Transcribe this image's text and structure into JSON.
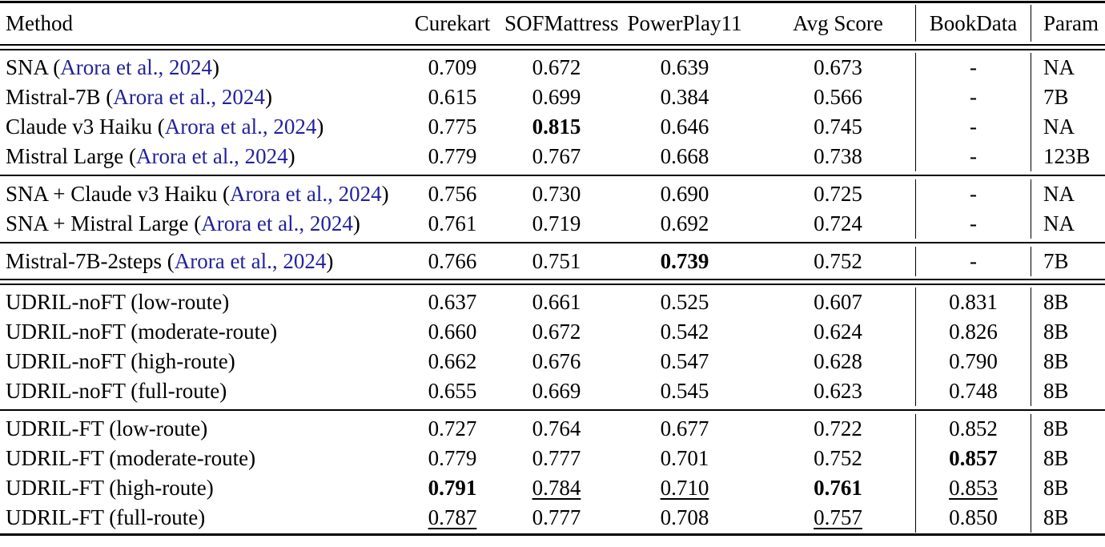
{
  "colors": {
    "citation_link": "#22229c",
    "text": "#000000",
    "rule": "#000000"
  },
  "table": {
    "columns": [
      {
        "label": "Method",
        "key": "method",
        "align": "left"
      },
      {
        "label": "Curekart",
        "key": "curekart",
        "align": "center"
      },
      {
        "label": "SOFMattress",
        "key": "sofmattress",
        "align": "center"
      },
      {
        "label": "PowerPlay11",
        "key": "powerplay11",
        "align": "center"
      },
      {
        "label": "Avg Score",
        "key": "avg-score",
        "align": "center"
      },
      {
        "label": "BookData",
        "key": "bookdata",
        "align": "center",
        "vline": true
      },
      {
        "label": "Param",
        "key": "param",
        "align": "left",
        "vline": true
      }
    ],
    "groups": [
      {
        "rule_after": "single",
        "rows": [
          {
            "method_pre": "SNA (",
            "citation": "Arora et al., 2024",
            "method_post": ")",
            "cells": [
              {
                "v": "0.709",
                "s": ""
              },
              {
                "v": "0.672",
                "s": ""
              },
              {
                "v": "0.639",
                "s": ""
              },
              {
                "v": "0.673",
                "s": ""
              },
              {
                "v": "-",
                "s": ""
              },
              {
                "v": "NA",
                "s": ""
              }
            ]
          },
          {
            "method_pre": "Mistral-7B (",
            "citation": "Arora et al., 2024",
            "method_post": ")",
            "cells": [
              {
                "v": "0.615",
                "s": ""
              },
              {
                "v": "0.699",
                "s": ""
              },
              {
                "v": "0.384",
                "s": ""
              },
              {
                "v": "0.566",
                "s": ""
              },
              {
                "v": "-",
                "s": ""
              },
              {
                "v": "7B",
                "s": ""
              }
            ]
          },
          {
            "method_pre": "Claude v3 Haiku (",
            "citation": "Arora et al., 2024",
            "method_post": ")",
            "cells": [
              {
                "v": "0.775",
                "s": ""
              },
              {
                "v": "0.815",
                "s": "b"
              },
              {
                "v": "0.646",
                "s": ""
              },
              {
                "v": "0.745",
                "s": ""
              },
              {
                "v": "-",
                "s": ""
              },
              {
                "v": "NA",
                "s": ""
              }
            ]
          },
          {
            "method_pre": "Mistral Large (",
            "citation": "Arora et al., 2024",
            "method_post": ")",
            "cells": [
              {
                "v": "0.779",
                "s": ""
              },
              {
                "v": "0.767",
                "s": ""
              },
              {
                "v": "0.668",
                "s": ""
              },
              {
                "v": "0.738",
                "s": ""
              },
              {
                "v": "-",
                "s": ""
              },
              {
                "v": "123B",
                "s": ""
              }
            ]
          }
        ]
      },
      {
        "rule_after": "single",
        "rows": [
          {
            "method_pre": "SNA + Claude v3 Haiku (",
            "citation": "Arora et al., 2024",
            "method_post": ")",
            "cells": [
              {
                "v": "0.756",
                "s": ""
              },
              {
                "v": "0.730",
                "s": ""
              },
              {
                "v": "0.690",
                "s": ""
              },
              {
                "v": "0.725",
                "s": ""
              },
              {
                "v": "-",
                "s": ""
              },
              {
                "v": "NA",
                "s": ""
              }
            ]
          },
          {
            "method_pre": "SNA + Mistral Large (",
            "citation": "Arora et al., 2024",
            "method_post": ")",
            "cells": [
              {
                "v": "0.761",
                "s": ""
              },
              {
                "v": "0.719",
                "s": ""
              },
              {
                "v": "0.692",
                "s": ""
              },
              {
                "v": "0.724",
                "s": ""
              },
              {
                "v": "-",
                "s": ""
              },
              {
                "v": "NA",
                "s": ""
              }
            ]
          }
        ]
      },
      {
        "rule_after": "double",
        "rows": [
          {
            "method_pre": "Mistral-7B-2steps (",
            "citation": "Arora et al., 2024",
            "method_post": ")",
            "cells": [
              {
                "v": "0.766",
                "s": ""
              },
              {
                "v": "0.751",
                "s": ""
              },
              {
                "v": "0.739",
                "s": "b"
              },
              {
                "v": "0.752",
                "s": ""
              },
              {
                "v": "-",
                "s": ""
              },
              {
                "v": "7B",
                "s": ""
              }
            ]
          }
        ]
      },
      {
        "rule_after": "single",
        "rows": [
          {
            "method_pre": "UDRIL-noFT (low-route)",
            "citation": "",
            "method_post": "",
            "cells": [
              {
                "v": "0.637",
                "s": ""
              },
              {
                "v": "0.661",
                "s": ""
              },
              {
                "v": "0.525",
                "s": ""
              },
              {
                "v": "0.607",
                "s": ""
              },
              {
                "v": "0.831",
                "s": ""
              },
              {
                "v": "8B",
                "s": ""
              }
            ]
          },
          {
            "method_pre": "UDRIL-noFT (moderate-route)",
            "citation": "",
            "method_post": "",
            "cells": [
              {
                "v": "0.660",
                "s": ""
              },
              {
                "v": "0.672",
                "s": ""
              },
              {
                "v": "0.542",
                "s": ""
              },
              {
                "v": "0.624",
                "s": ""
              },
              {
                "v": "0.826",
                "s": ""
              },
              {
                "v": "8B",
                "s": ""
              }
            ]
          },
          {
            "method_pre": "UDRIL-noFT (high-route)",
            "citation": "",
            "method_post": "",
            "cells": [
              {
                "v": "0.662",
                "s": ""
              },
              {
                "v": "0.676",
                "s": ""
              },
              {
                "v": "0.547",
                "s": ""
              },
              {
                "v": "0.628",
                "s": ""
              },
              {
                "v": "0.790",
                "s": ""
              },
              {
                "v": "8B",
                "s": ""
              }
            ]
          },
          {
            "method_pre": "UDRIL-noFT (full-route)",
            "citation": "",
            "method_post": "",
            "cells": [
              {
                "v": "0.655",
                "s": ""
              },
              {
                "v": "0.669",
                "s": ""
              },
              {
                "v": "0.545",
                "s": ""
              },
              {
                "v": "0.623",
                "s": ""
              },
              {
                "v": "0.748",
                "s": ""
              },
              {
                "v": "8B",
                "s": ""
              }
            ]
          }
        ]
      },
      {
        "rule_after": "none",
        "rows": [
          {
            "method_pre": "UDRIL-FT (low-route)",
            "citation": "",
            "method_post": "",
            "cells": [
              {
                "v": "0.727",
                "s": ""
              },
              {
                "v": "0.764",
                "s": ""
              },
              {
                "v": "0.677",
                "s": ""
              },
              {
                "v": "0.722",
                "s": ""
              },
              {
                "v": "0.852",
                "s": ""
              },
              {
                "v": "8B",
                "s": ""
              }
            ]
          },
          {
            "method_pre": "UDRIL-FT (moderate-route)",
            "citation": "",
            "method_post": "",
            "cells": [
              {
                "v": "0.779",
                "s": ""
              },
              {
                "v": "0.777",
                "s": ""
              },
              {
                "v": "0.701",
                "s": ""
              },
              {
                "v": "0.752",
                "s": ""
              },
              {
                "v": "0.857",
                "s": "b"
              },
              {
                "v": "8B",
                "s": ""
              }
            ]
          },
          {
            "method_pre": "UDRIL-FT (high-route)",
            "citation": "",
            "method_post": "",
            "cells": [
              {
                "v": "0.791",
                "s": "b"
              },
              {
                "v": "0.784",
                "s": "u"
              },
              {
                "v": "0.710",
                "s": "u"
              },
              {
                "v": "0.761",
                "s": "b"
              },
              {
                "v": "0.853",
                "s": "u"
              },
              {
                "v": "8B",
                "s": ""
              }
            ]
          },
          {
            "method_pre": "UDRIL-FT (full-route)",
            "citation": "",
            "method_post": "",
            "cells": [
              {
                "v": "0.787",
                "s": "u"
              },
              {
                "v": "0.777",
                "s": ""
              },
              {
                "v": "0.708",
                "s": ""
              },
              {
                "v": "0.757",
                "s": "u"
              },
              {
                "v": "0.850",
                "s": ""
              },
              {
                "v": "8B",
                "s": ""
              }
            ]
          }
        ]
      }
    ]
  }
}
